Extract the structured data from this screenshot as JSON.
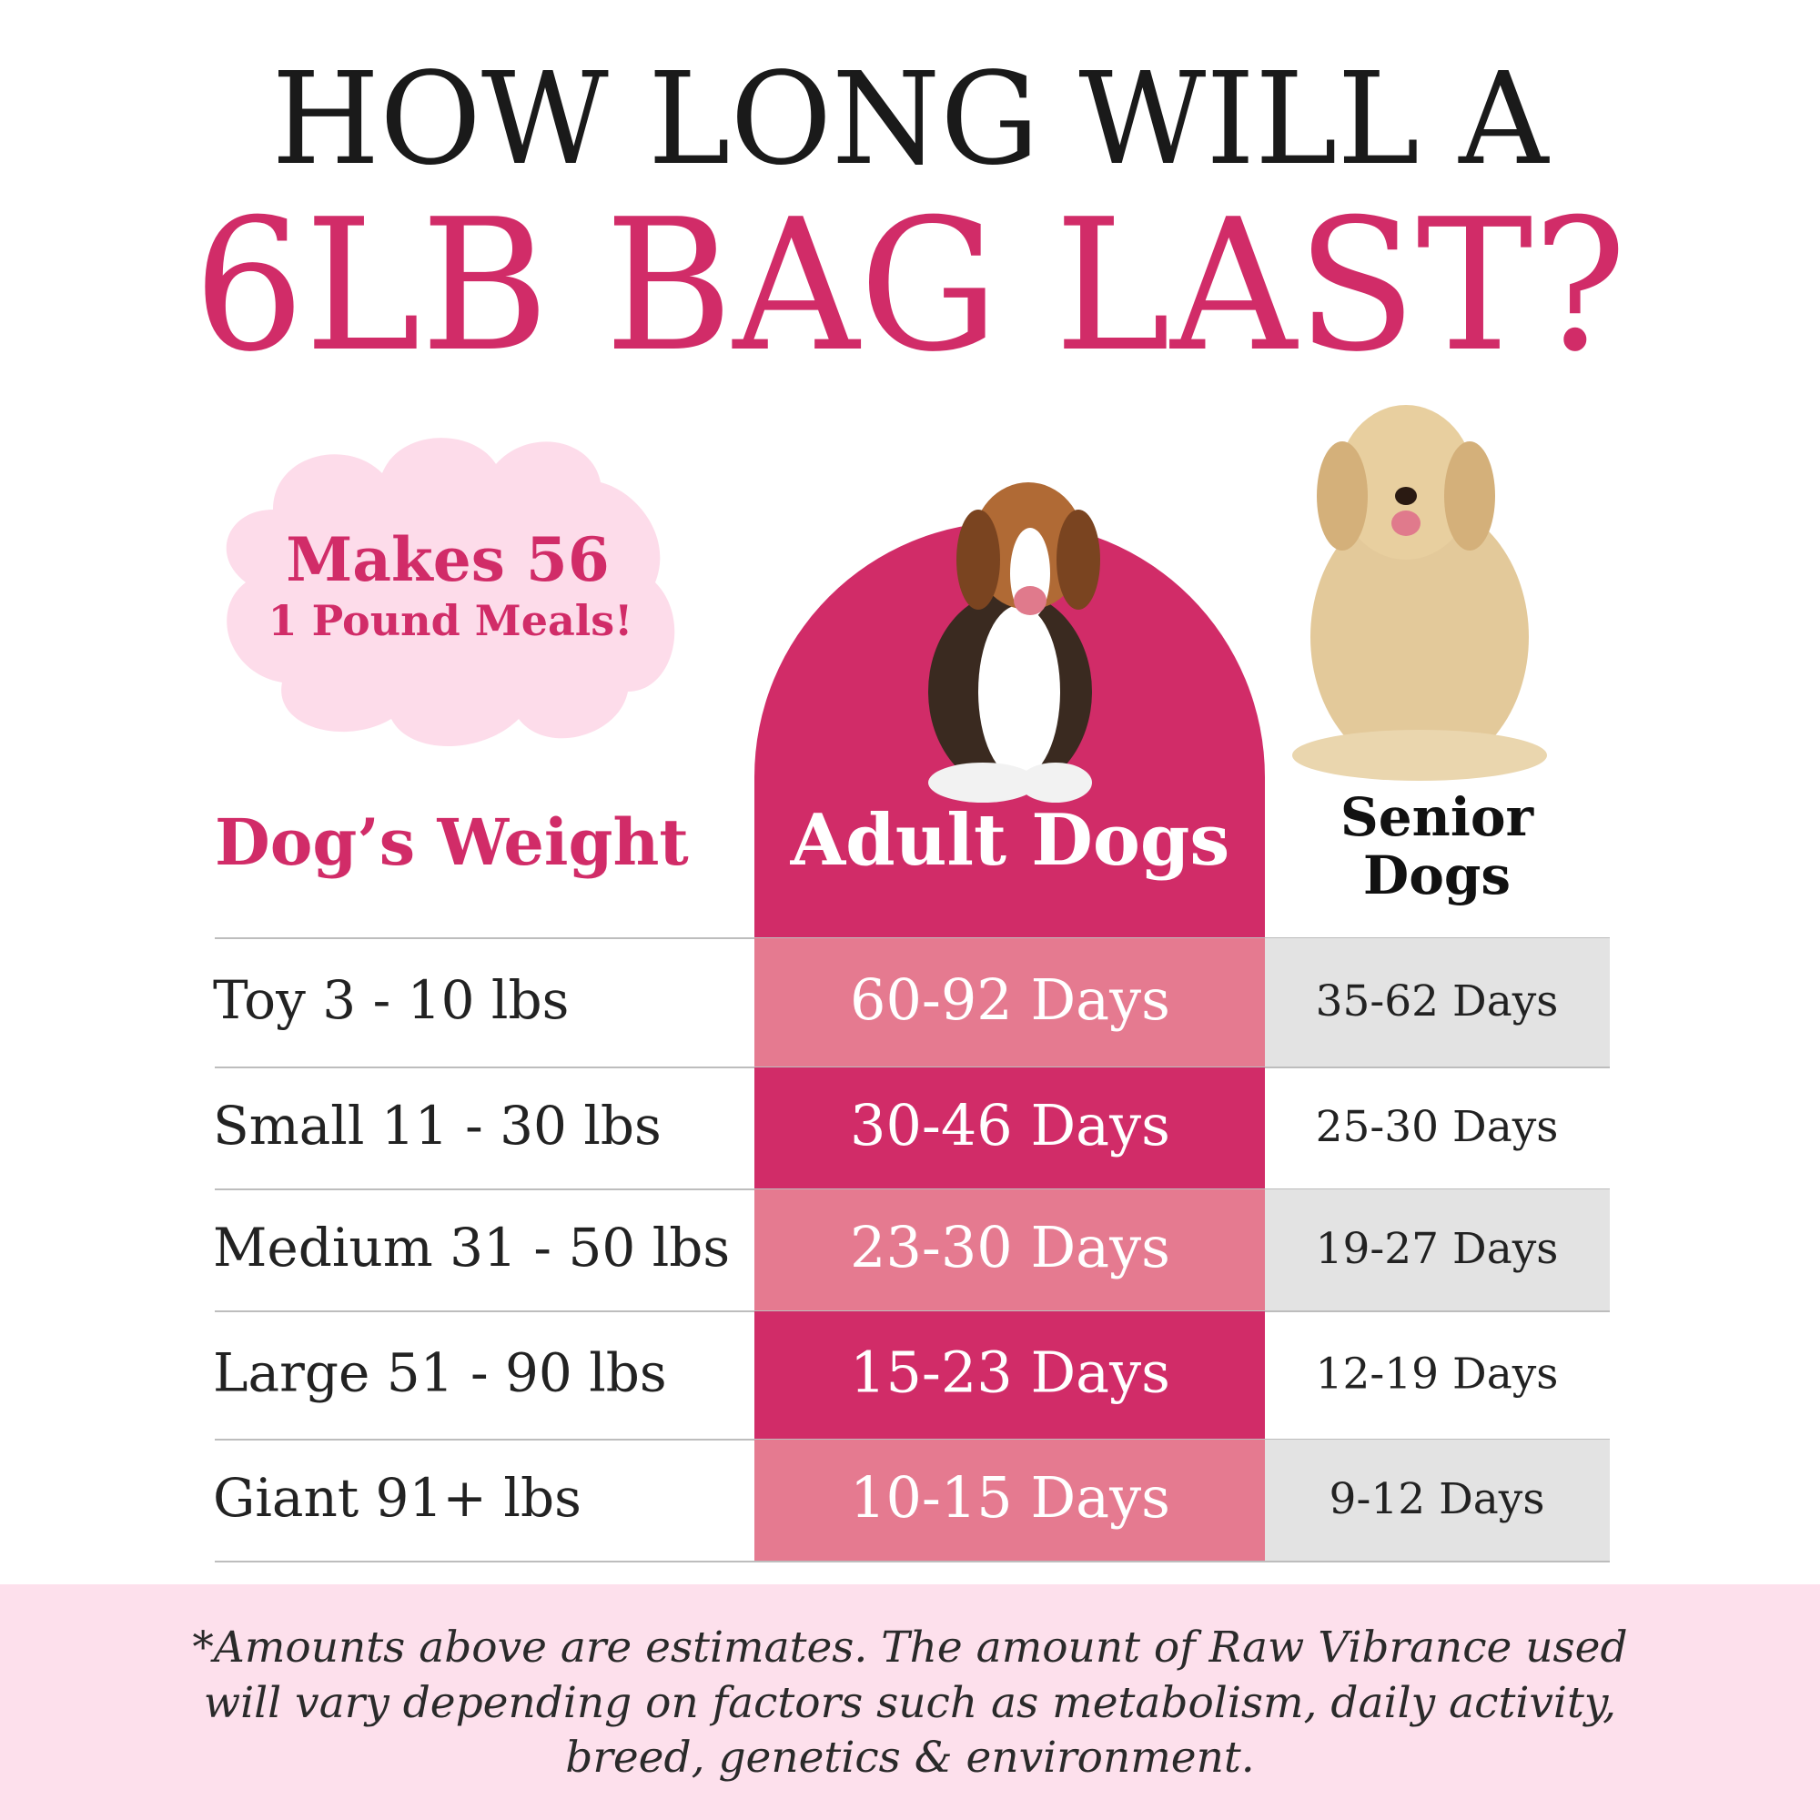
{
  "header": {
    "line1": "HOW LONG WILL A",
    "line2": "6LB BAG LAST?"
  },
  "badge": {
    "line1": "Makes 56",
    "line2": "1 Pound Meals!"
  },
  "table": {
    "headers": [
      "Dog’s Weight",
      "Adult Dogs",
      [
        "Senior",
        "Dogs"
      ]
    ],
    "rows": [
      [
        "Toy 3 - 10 lbs",
        "60-92 Days",
        "35-62 Days"
      ],
      [
        "Small 11 - 30 lbs",
        "30-46 Days",
        "25-30 Days"
      ],
      [
        "Medium 31 - 50 lbs",
        "23-30 Days",
        "19-27 Days"
      ],
      [
        "Large 51 - 90 lbs",
        "15-23 Days",
        "12-19 Days"
      ],
      [
        "Giant 91+ lbs",
        "10-15 Days",
        "9-12 Days"
      ]
    ]
  },
  "footnote": [
    "*Amounts above are estimates. The amount of Raw Vibrance used",
    "will vary depending on factors such as metabolism, daily activity,",
    "breed, genetics & environment."
  ]
}
